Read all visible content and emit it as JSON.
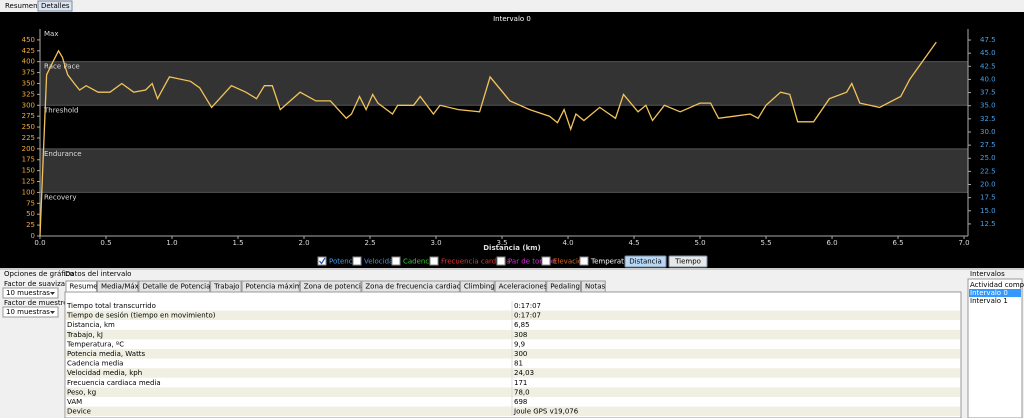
{
  "tabs": [
    "Resumen",
    "Detalles"
  ],
  "chart_data": {
    "type": "line",
    "title": "Intervalo 0",
    "x_label": "Distancia (km)",
    "x": [
      0,
      0.05,
      0.09,
      0.14,
      0.17,
      0.21,
      0.26,
      0.3,
      0.35,
      0.44,
      0.53,
      0.62,
      0.71,
      0.8,
      0.85,
      0.89,
      0.98,
      1.14,
      1.21,
      1.3,
      1.45,
      1.56,
      1.64,
      1.7,
      1.76,
      1.82,
      1.97,
      2.09,
      2.2,
      2.32,
      2.36,
      2.42,
      2.47,
      2.52,
      2.56,
      2.67,
      2.71,
      2.83,
      2.88,
      2.98,
      3.03,
      3.17,
      3.33,
      3.41,
      3.56,
      3.71,
      3.86,
      3.92,
      3.97,
      4.02,
      4.06,
      4.12,
      4.24,
      4.36,
      4.42,
      4.53,
      4.59,
      4.64,
      4.73,
      4.85,
      5,
      5.08,
      5.14,
      5.26,
      5.38,
      5.44,
      5.5,
      5.61,
      5.68,
      5.74,
      5.86,
      5.98,
      6.11,
      6.15,
      6.21,
      6.36,
      6.52,
      6.59,
      6.79
    ],
    "series": [
      {
        "name": "Potencia",
        "color": "#f2c35a",
        "values": [
          0,
          370,
          395,
          425,
          410,
          370,
          350,
          335,
          345,
          330,
          330,
          350,
          330,
          335,
          350,
          315,
          365,
          355,
          340,
          295,
          345,
          330,
          315,
          345,
          345,
          290,
          330,
          310,
          310,
          270,
          280,
          320,
          290,
          325,
          305,
          280,
          300,
          300,
          320,
          280,
          300,
          290,
          285,
          365,
          310,
          290,
          275,
          260,
          290,
          245,
          280,
          265,
          295,
          270,
          325,
          285,
          300,
          265,
          300,
          285,
          305,
          305,
          270,
          275,
          280,
          270,
          300,
          330,
          325,
          262,
          262,
          315,
          330,
          350,
          305,
          295,
          320,
          360,
          445
        ]
      }
    ],
    "xlim": [
      0,
      7.03
    ],
    "xticks": [
      {
        "value": 0,
        "label": "0.0"
      },
      0.5,
      {
        "value": 1,
        "label": "1.0"
      },
      1.5,
      {
        "value": 2,
        "label": "2.0"
      },
      2.5,
      {
        "value": 3,
        "label": "3.0"
      },
      3.5,
      {
        "value": 4,
        "label": "4.0"
      },
      4.5,
      {
        "value": 5,
        "label": "5.0"
      },
      5.5,
      {
        "value": 6,
        "label": "6.0"
      },
      6.5,
      {
        "value": 7,
        "label": "7.0"
      }
    ],
    "ylim": [
      0,
      475
    ],
    "yticks": [
      0,
      25,
      50,
      75,
      100,
      125,
      150,
      175,
      200,
      225,
      250,
      275,
      300,
      325,
      350,
      375,
      400,
      425,
      450
    ],
    "y_color": "#f2a93b",
    "y2lim": [
      10.2,
      49.6
    ],
    "y2ticks": [
      12.5,
      {
        "value": 15,
        "label": "15.0"
      },
      17.5,
      {
        "value": 20,
        "label": "20.0"
      },
      22.5,
      {
        "value": 25,
        "label": "25.0"
      },
      27.5,
      {
        "value": 30,
        "label": "30.0"
      },
      32.5,
      {
        "value": 35,
        "label": "35.0"
      },
      37.5,
      {
        "value": 40,
        "label": "40.0"
      },
      42.5,
      {
        "value": 45,
        "label": "45.0"
      },
      47.5
    ],
    "y2_color": "#4a9fe8",
    "zones": [
      {
        "name": "Max",
        "from": 400,
        "shaded": false
      },
      {
        "name": "Race Pace",
        "from": 300,
        "shaded": true
      },
      {
        "name": "Threshold",
        "from": 200,
        "shaded": false
      },
      {
        "name": "Endurance",
        "from": 100,
        "shaded": true
      },
      {
        "name": "Recovery",
        "from": 0,
        "shaded": false
      }
    ]
  },
  "chart_options": {
    "first_label_color": "#4a9fe8",
    "toggles": [
      {
        "label": "Velocidad",
        "color": "#4a8fe0"
      },
      {
        "label": "Cadencia",
        "color": "#33cc33"
      },
      {
        "label": "Frecuencia cardiaca",
        "color": "#e03333"
      },
      {
        "label": "Par de torsión",
        "color": "#cc33cc"
      },
      {
        "label": "Elevación",
        "color": "#dd6622"
      },
      {
        "label": "Temperatura",
        "color": "#ffffff"
      }
    ],
    "buttons": [
      "Distancia",
      "Tiempo"
    ],
    "active_button": 0
  },
  "graph_options": {
    "title": "Opciones de gráfico",
    "smoothing_label": "Factor de suavizado:",
    "smoothing_value": "10 muestras",
    "sampling_label": "Factor de muestreo:",
    "sampling_value": "10 muestras"
  },
  "interval_data": {
    "title": "Datos del intervalo",
    "tabs": [
      "Resumen",
      "Media/Máx.",
      "Detalle de Potencia",
      "Trabajo",
      "Potencia máxima",
      "Zona de potencia",
      "Zona de frecuencia cardiaca",
      "Climbing",
      "Aceleraciones",
      "Pedaling",
      "Notas"
    ],
    "active_tab": 0,
    "rows": [
      [
        "Tiempo total transcurrido",
        "0:17:07"
      ],
      [
        "Tiempo de sesión (tiempo en movimiento)",
        "0:17:07"
      ],
      [
        "Distancia, km",
        "6,85"
      ],
      [
        "Trabajo, kJ",
        "308"
      ],
      [
        "Temperatura, ºC",
        "9,9"
      ],
      [
        "Potencia media, Watts",
        "300"
      ],
      [
        "Cadencia media",
        "81"
      ],
      [
        "Velocidad media, kph",
        "24,03"
      ],
      [
        "Frecuencia cardiaca media",
        "171"
      ],
      [
        "Peso, kg",
        "78,0"
      ],
      [
        "VAM",
        "698"
      ],
      [
        "Device",
        "Joule GPS v19,076"
      ]
    ]
  },
  "intervals": {
    "title": "Intervalos",
    "items": [
      "Actividad completa",
      "Intervalo 0",
      "Intervalo 1"
    ],
    "selected": 1
  }
}
